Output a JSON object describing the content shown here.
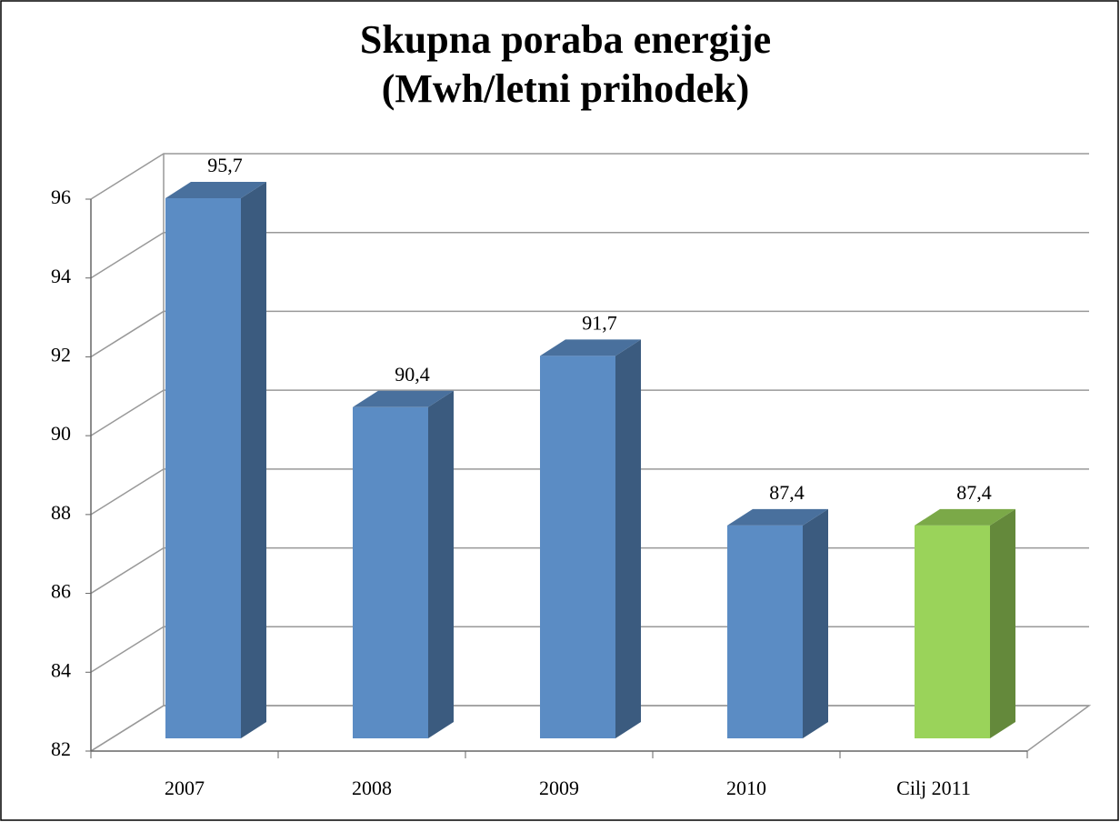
{
  "chart_data": {
    "type": "bar3d",
    "title": [
      "Skupna poraba energije",
      "(Mwh/letni prihodek)"
    ],
    "categories": [
      "2007",
      "2008",
      "2009",
      "2010",
      "Cilj 2011"
    ],
    "values": [
      95.7,
      90.4,
      91.7,
      87.4,
      87.4
    ],
    "value_labels": [
      "95,7",
      "90,4",
      "91,7",
      "87,4",
      "87,4"
    ],
    "colors": [
      "#5b8cc4",
      "#5b8cc4",
      "#5b8cc4",
      "#5b8cc4",
      "#9ad35a"
    ],
    "ylim": [
      82,
      96
    ],
    "yticks": [
      82,
      84,
      86,
      88,
      90,
      92,
      94,
      96
    ],
    "grid": true
  }
}
